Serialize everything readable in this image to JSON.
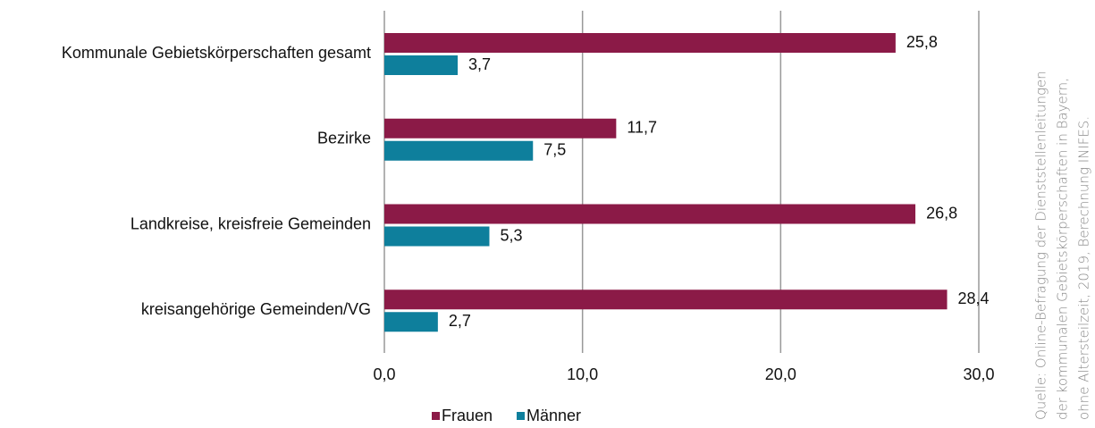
{
  "chart_data": {
    "type": "barh",
    "categories": [
      "Kommunale Gebietskörperschaften gesamt",
      "Bezirke",
      "Landkreise, kreisfreie Gemeinden",
      "kreisangehörige Gemeinden/VG"
    ],
    "series": [
      {
        "name": "Frauen",
        "color": "#8b1a47",
        "values": [
          25.8,
          11.7,
          26.8,
          28.4
        ],
        "value_labels": [
          "25,8",
          "11,7",
          "26,8",
          "28,4"
        ]
      },
      {
        "name": "Männer",
        "color": "#0e7f9c",
        "values": [
          3.7,
          7.5,
          5.3,
          2.7
        ],
        "value_labels": [
          "3,7",
          "7,5",
          "5,3",
          "2,7"
        ]
      }
    ],
    "xlim": [
      0,
      30
    ],
    "xticks": [
      {
        "value": 0,
        "label": "0,0"
      },
      {
        "value": 10,
        "label": "10,0"
      },
      {
        "value": 20,
        "label": "20,0"
      },
      {
        "value": 30,
        "label": "30,0"
      }
    ],
    "grid": true,
    "legend": "bottom",
    "source": [
      "Quelle: Online-Befragung der Dienststellenleitungen",
      "der kommunalen Gebietskörperschaften in Bayern,",
      "ohne Altersteilzeit, 2019, Berechnung INIFES."
    ]
  }
}
